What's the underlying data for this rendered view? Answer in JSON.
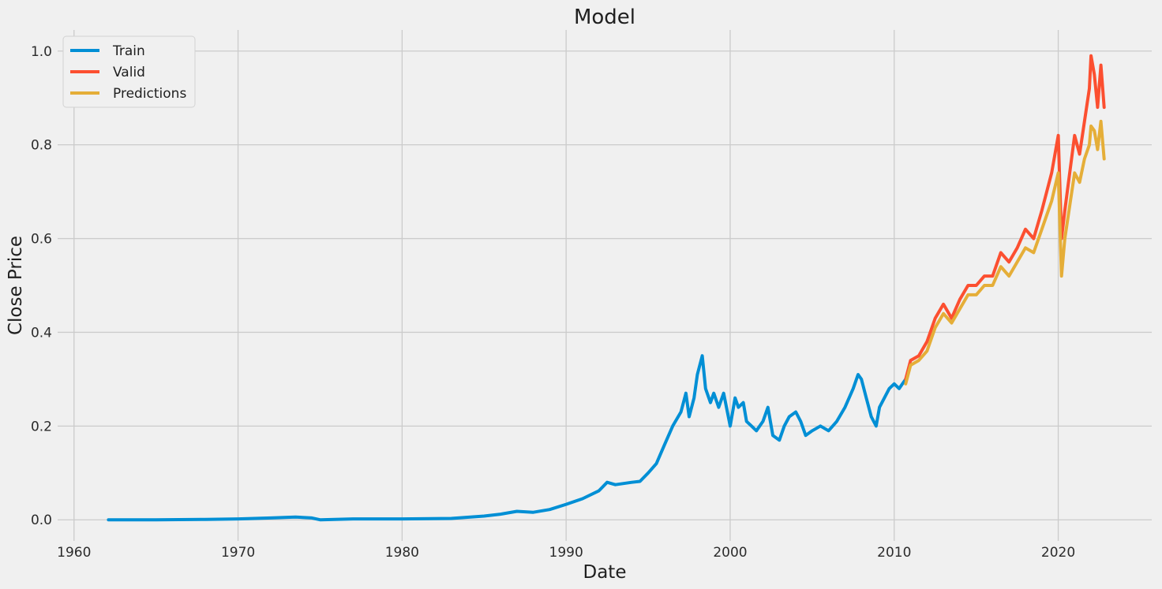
{
  "chart_data": {
    "type": "line",
    "title": "Model",
    "xlabel": "Date",
    "ylabel": "Close Price",
    "xlim": [
      1959.0,
      2025.7
    ],
    "ylim": [
      -0.045,
      1.045
    ],
    "x_ticks": [
      1960,
      1970,
      1980,
      1990,
      2000,
      2010,
      2020
    ],
    "y_ticks": [
      0.0,
      0.2,
      0.4,
      0.6,
      0.8,
      1.0
    ],
    "y_tick_labels": [
      "0.0",
      "0.2",
      "0.4",
      "0.6",
      "0.8",
      "1.0"
    ],
    "grid": true,
    "legend_position": "upper-left",
    "series": [
      {
        "name": "Train",
        "color": "#008fd5",
        "x": [
          1962.1,
          1965,
          1968,
          1970,
          1972,
          1973.5,
          1974.5,
          1975,
          1977,
          1980,
          1983,
          1985,
          1986,
          1987,
          1988,
          1989,
          1990,
          1991,
          1992,
          1992.5,
          1993,
          1994,
          1994.5,
          1995,
          1995.5,
          1996,
          1996.5,
          1997,
          1997.3,
          1997.5,
          1997.8,
          1998,
          1998.3,
          1998.5,
          1998.8,
          1999,
          1999.3,
          1999.6,
          2000,
          2000.3,
          2000.5,
          2000.8,
          2001,
          2001.3,
          2001.6,
          2002,
          2002.3,
          2002.6,
          2003,
          2003.3,
          2003.6,
          2004,
          2004.3,
          2004.6,
          2005,
          2005.5,
          2006,
          2006.5,
          2007,
          2007.5,
          2007.8,
          2008,
          2008.3,
          2008.6,
          2008.9,
          2009.1,
          2009.4,
          2009.7,
          2010,
          2010.3,
          2010.7
        ],
        "y": [
          0.0,
          0.0,
          0.001,
          0.002,
          0.004,
          0.006,
          0.004,
          0.0,
          0.002,
          0.002,
          0.003,
          0.008,
          0.012,
          0.018,
          0.016,
          0.022,
          0.033,
          0.045,
          0.062,
          0.08,
          0.075,
          0.08,
          0.082,
          0.1,
          0.12,
          0.16,
          0.2,
          0.23,
          0.27,
          0.22,
          0.26,
          0.31,
          0.35,
          0.28,
          0.25,
          0.27,
          0.24,
          0.27,
          0.2,
          0.26,
          0.24,
          0.25,
          0.21,
          0.2,
          0.19,
          0.21,
          0.24,
          0.18,
          0.17,
          0.2,
          0.22,
          0.23,
          0.21,
          0.18,
          0.19,
          0.2,
          0.19,
          0.21,
          0.24,
          0.28,
          0.31,
          0.3,
          0.26,
          0.22,
          0.2,
          0.24,
          0.26,
          0.28,
          0.29,
          0.28,
          0.3
        ]
      },
      {
        "name": "Valid",
        "color": "#fc4f30",
        "x": [
          2010.7,
          2011,
          2011.5,
          2012,
          2012.5,
          2013,
          2013.5,
          2014,
          2014.5,
          2015,
          2015.5,
          2016,
          2016.5,
          2017,
          2017.5,
          2018,
          2018.5,
          2019,
          2019.3,
          2019.6,
          2020,
          2020.2,
          2020.4,
          2020.7,
          2021,
          2021.3,
          2021.6,
          2021.9,
          2022,
          2022.2,
          2022.4,
          2022.6,
          2022.8
        ],
        "y": [
          0.3,
          0.34,
          0.35,
          0.38,
          0.43,
          0.46,
          0.43,
          0.47,
          0.5,
          0.5,
          0.52,
          0.52,
          0.57,
          0.55,
          0.58,
          0.62,
          0.6,
          0.66,
          0.7,
          0.74,
          0.82,
          0.6,
          0.66,
          0.74,
          0.82,
          0.78,
          0.85,
          0.92,
          0.99,
          0.95,
          0.88,
          0.97,
          0.88
        ]
      },
      {
        "name": "Predictions",
        "color": "#e5ae38",
        "x": [
          2010.7,
          2011,
          2011.5,
          2012,
          2012.5,
          2013,
          2013.5,
          2014,
          2014.5,
          2015,
          2015.5,
          2016,
          2016.5,
          2017,
          2017.5,
          2018,
          2018.5,
          2019,
          2019.3,
          2019.6,
          2020,
          2020.2,
          2020.4,
          2020.7,
          2021,
          2021.3,
          2021.6,
          2021.9,
          2022,
          2022.2,
          2022.4,
          2022.6,
          2022.8
        ],
        "y": [
          0.29,
          0.33,
          0.34,
          0.36,
          0.41,
          0.44,
          0.42,
          0.45,
          0.48,
          0.48,
          0.5,
          0.5,
          0.54,
          0.52,
          0.55,
          0.58,
          0.57,
          0.62,
          0.65,
          0.68,
          0.74,
          0.52,
          0.6,
          0.67,
          0.74,
          0.72,
          0.77,
          0.8,
          0.84,
          0.83,
          0.79,
          0.85,
          0.77
        ]
      }
    ]
  }
}
